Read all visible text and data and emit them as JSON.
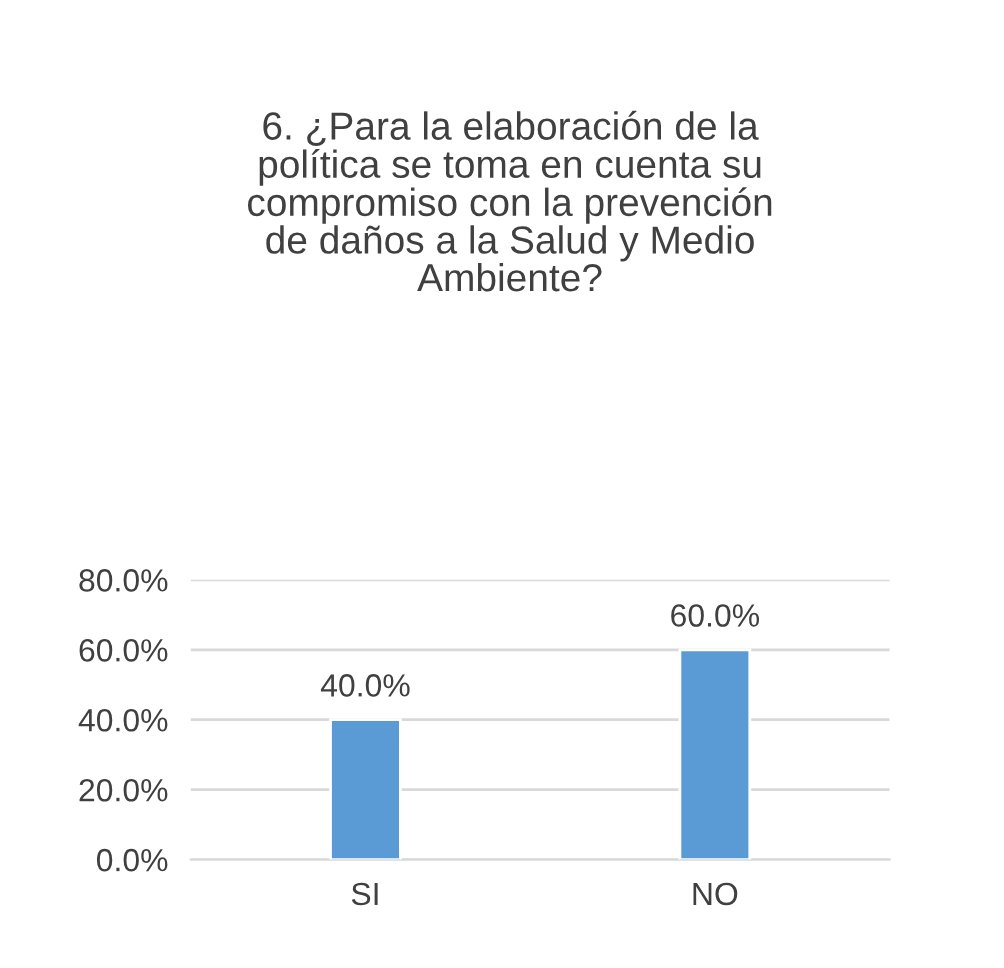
{
  "chart_data": {
    "type": "bar",
    "title": "6. ¿Para la elaboración de la\npolítica se toma en cuenta su\ncompromiso con la prevención\nde daños a la Salud y Medio\nAmbiente?",
    "categories": [
      "SI",
      "NO"
    ],
    "values": [
      40,
      60
    ],
    "value_labels": [
      "40.0%",
      "60.0%"
    ],
    "color": "#5b9bd5",
    "ylim": [
      0,
      80
    ],
    "yticks": [
      {
        "value": 0,
        "label": "0.0%"
      },
      {
        "value": 20,
        "label": "20.0%"
      },
      {
        "value": 40,
        "label": "40.0%"
      },
      {
        "value": 60,
        "label": "60.0%"
      },
      {
        "value": 80,
        "label": "80.0%"
      }
    ],
    "grid": "y",
    "legend": false
  }
}
